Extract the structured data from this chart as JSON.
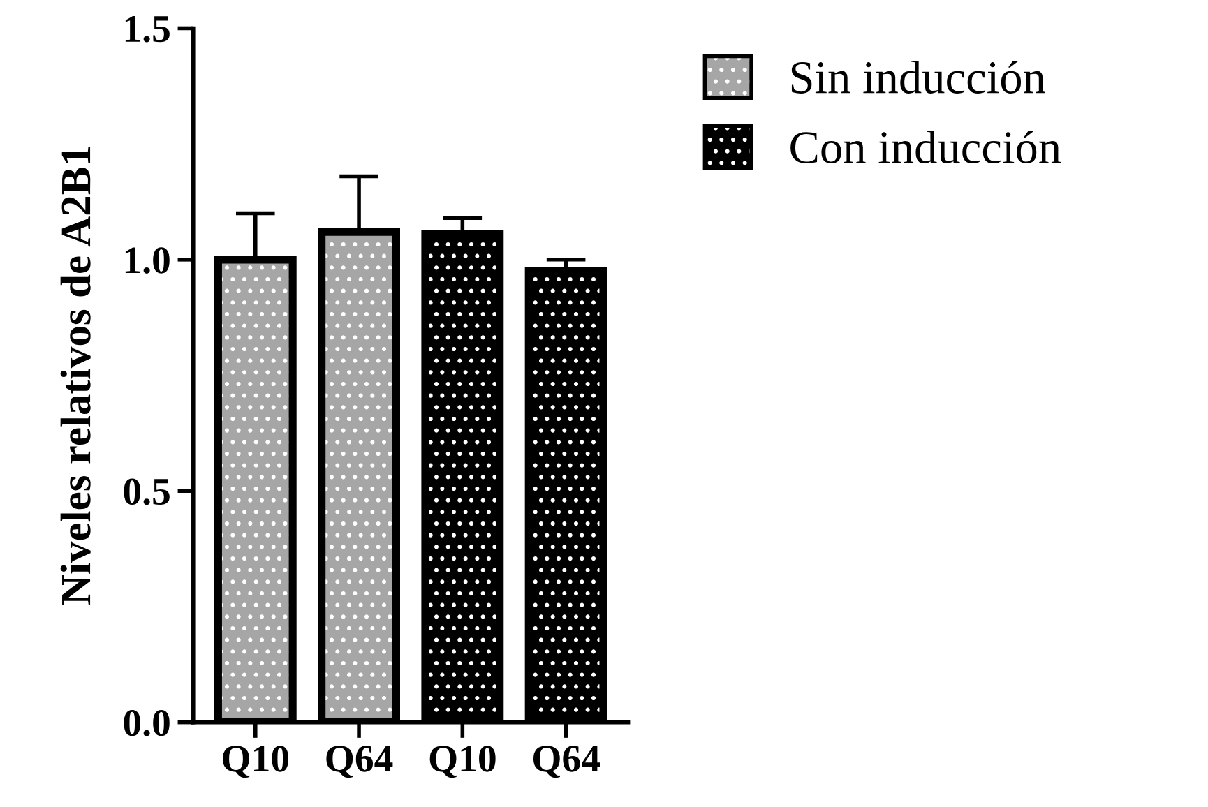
{
  "chart_data": {
    "type": "bar",
    "ylabel": "Niveles relativos de A2B1",
    "categories": [
      "Q10",
      "Q64",
      "Q10",
      "Q64"
    ],
    "series": [
      {
        "name": "Sin inducción",
        "color": "#a6a6a6",
        "values": [
          1.0,
          1.06,
          null,
          null
        ],
        "errors": [
          [
            1.0,
            1.1
          ],
          [
            1.06,
            1.18
          ],
          null,
          null
        ]
      },
      {
        "name": "Con inducción",
        "color": "#000000",
        "values": [
          null,
          null,
          1.055,
          0.975
        ],
        "errors": [
          null,
          null,
          [
            1.055,
            1.09
          ],
          [
            0.975,
            1.0
          ]
        ]
      }
    ],
    "ylim": [
      0,
      1.5
    ],
    "yticks": [
      {
        "value": 0,
        "label": "0.0"
      },
      {
        "value": 0.5,
        "label": "0.5"
      },
      {
        "value": 1.0,
        "label": "1.0"
      },
      {
        "value": 1.5,
        "label": "1.5"
      }
    ],
    "grid": false,
    "legend": "top right"
  }
}
